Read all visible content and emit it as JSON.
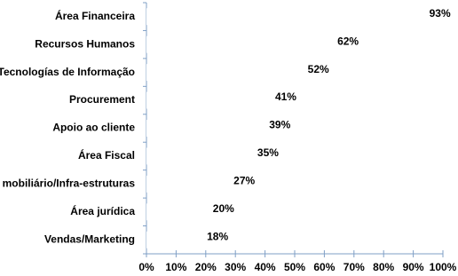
{
  "chart_data": {
    "type": "barh",
    "categories": [
      "Área Financeira",
      "Recursos Humanos",
      "Tecnologías de Informação",
      "Procurement",
      "Apoio ao cliente",
      "Área Fiscal",
      "mobiliário/Infra-estruturas",
      "Área jurídica",
      "Vendas/Marketing"
    ],
    "values": [
      93,
      62,
      52,
      41,
      39,
      35,
      27,
      20,
      18
    ],
    "value_labels": [
      "93%",
      "62%",
      "52%",
      "41%",
      "39%",
      "35%",
      "27%",
      "20%",
      "18%"
    ],
    "color": "#ffffff",
    "xlim": [
      0,
      100
    ],
    "xticks": [
      {
        "value": 0,
        "label": "0%"
      },
      {
        "value": 10,
        "label": "10%"
      },
      {
        "value": 20,
        "label": "20%"
      },
      {
        "value": 30,
        "label": "30%"
      },
      {
        "value": 40,
        "label": "40%"
      },
      {
        "value": 50,
        "label": "50%"
      },
      {
        "value": 60,
        "label": "60%"
      },
      {
        "value": 70,
        "label": "70%"
      },
      {
        "value": 80,
        "label": "80%"
      },
      {
        "value": 90,
        "label": "90%"
      },
      {
        "value": 100,
        "label": "100%"
      }
    ],
    "grid": false
  }
}
